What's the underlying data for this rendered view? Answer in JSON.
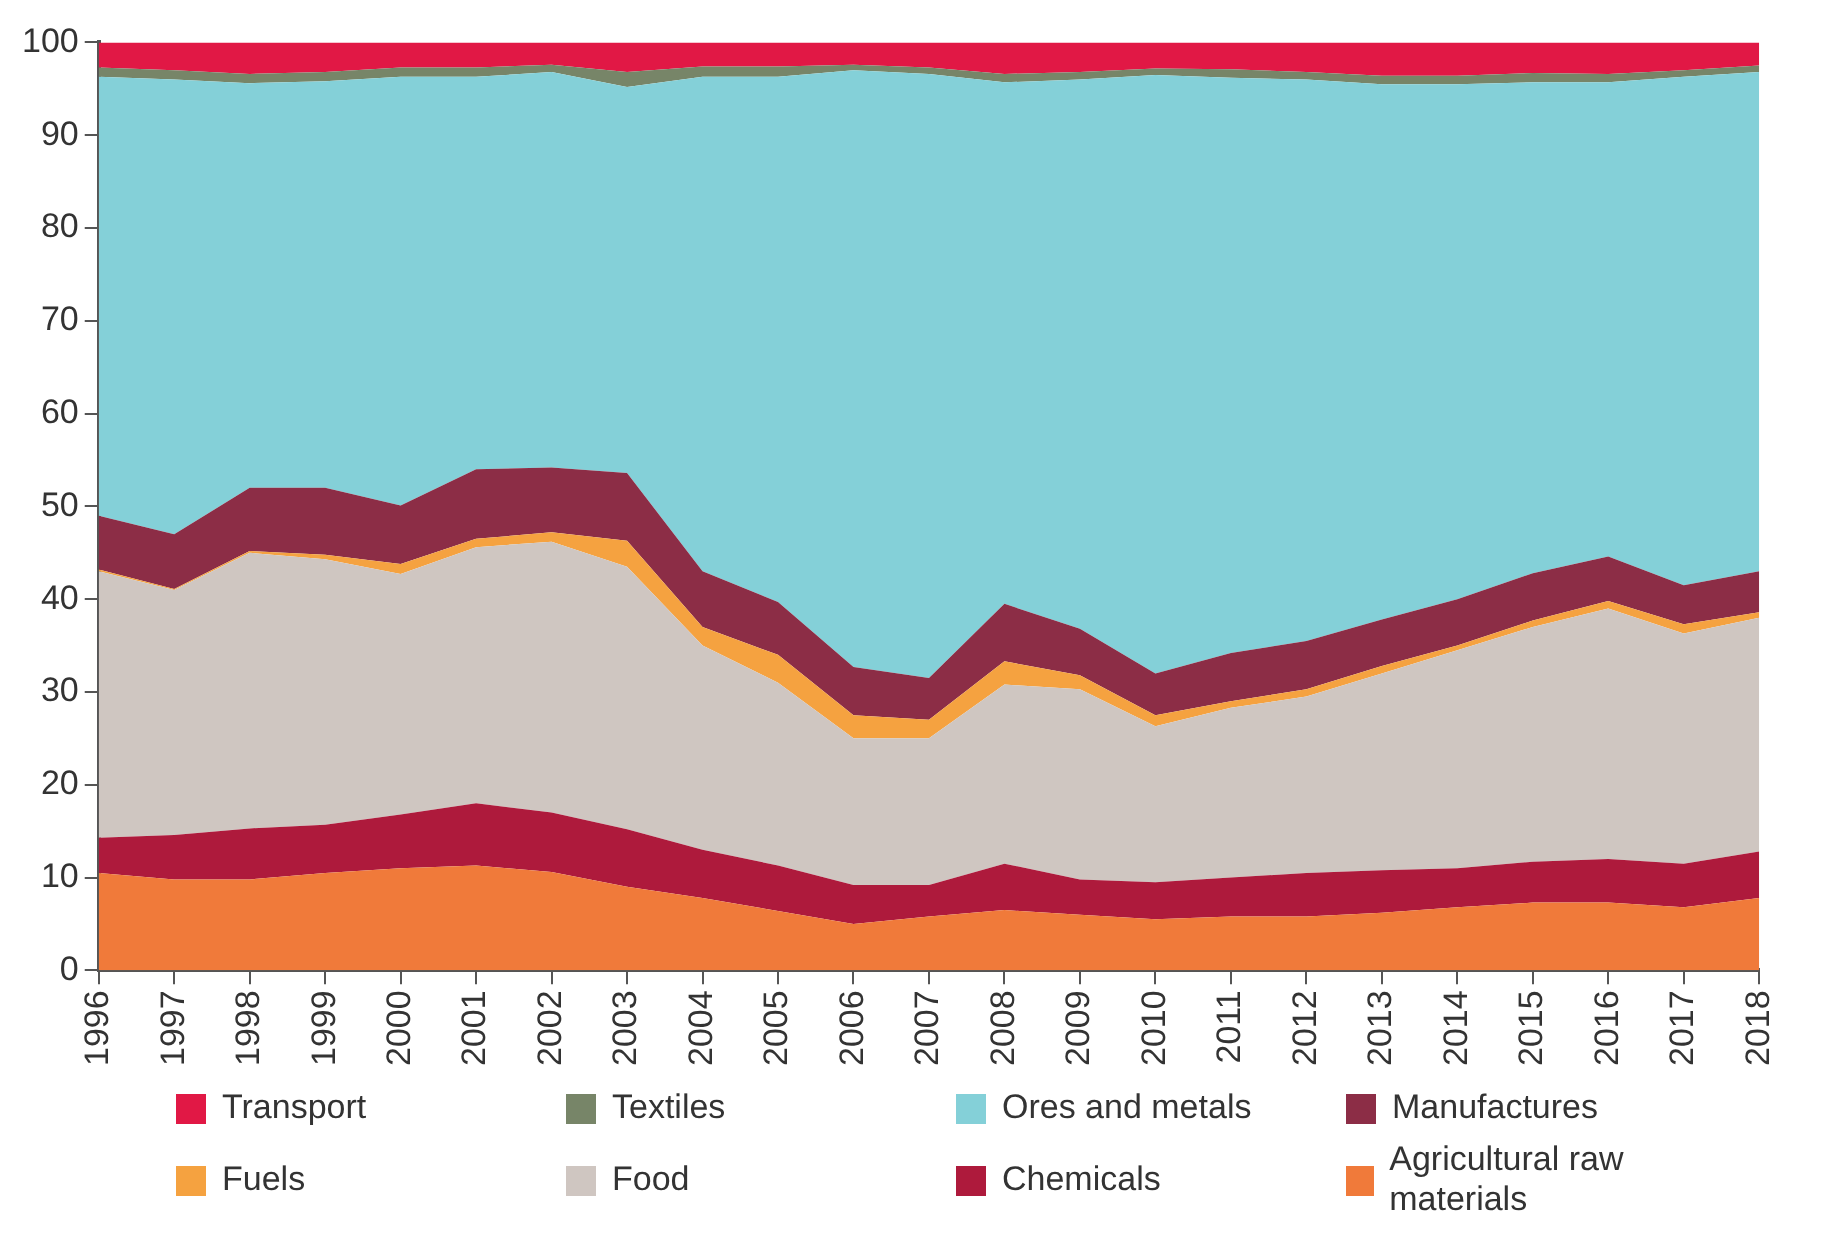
{
  "chart_data": {
    "type": "area",
    "stacked": true,
    "categories": [
      "1996",
      "1997",
      "1998",
      "1999",
      "2000",
      "2001",
      "2002",
      "2003",
      "2004",
      "2005",
      "2006",
      "2007",
      "2008",
      "2009",
      "2010",
      "2011",
      "2012",
      "2013",
      "2014",
      "2015",
      "2016",
      "2017",
      "2018"
    ],
    "series": [
      {
        "name": "Agricultural raw materials",
        "color": "#f07a3a",
        "values": [
          10.5,
          9.8,
          9.8,
          10.5,
          11,
          11.3,
          10.6,
          9,
          7.8,
          6.4,
          5,
          5.8,
          6.5,
          6,
          5.5,
          5.8,
          5.8,
          6.2,
          6.8,
          7.3,
          7.3,
          6.8,
          7.8
        ]
      },
      {
        "name": "Chemicals",
        "color": "#ae1a3c",
        "values": [
          3.8,
          4.8,
          5.5,
          5.2,
          5.8,
          6.7,
          6.4,
          6.2,
          5.2,
          4.9,
          4.2,
          3.4,
          5,
          3.8,
          4,
          4.2,
          4.7,
          4.6,
          4.2,
          4.4,
          4.7,
          4.7,
          5
        ]
      },
      {
        "name": "Food",
        "color": "#cfc6c1",
        "values": [
          28.7,
          26.4,
          29.7,
          28.6,
          25.9,
          27.6,
          29.2,
          28.3,
          22,
          19.7,
          15.8,
          15.8,
          19.3,
          20.5,
          16.8,
          18.3,
          19,
          21.2,
          23.5,
          25.3,
          27,
          24.8,
          25.2
        ]
      },
      {
        "name": "Fuels",
        "color": "#f5a240",
        "values": [
          0.2,
          0.1,
          0.2,
          0.5,
          1.1,
          0.9,
          1,
          2.8,
          2,
          3,
          2.5,
          2,
          2.5,
          1.5,
          1.2,
          0.7,
          0.8,
          0.8,
          0.5,
          0.7,
          0.8,
          1,
          0.6
        ]
      },
      {
        "name": "Manufactures",
        "color": "#8c2d46",
        "values": [
          5.8,
          5.9,
          6.8,
          7.2,
          6.3,
          7.5,
          7,
          7.3,
          6,
          5.7,
          5.2,
          4.5,
          6.2,
          5,
          4.5,
          5.2,
          5.2,
          5,
          5,
          5.1,
          4.8,
          4.2,
          4.4
        ]
      },
      {
        "name": "Ores and metals",
        "color": "#84d0d8",
        "values": [
          47.3,
          49,
          43.6,
          43.8,
          46.2,
          42.3,
          42.6,
          41.6,
          53.3,
          56.6,
          64.3,
          65.1,
          56.2,
          59.2,
          64.5,
          62,
          60.5,
          57.7,
          55.5,
          52.9,
          51.1,
          54.8,
          53.8
        ]
      },
      {
        "name": "Textiles",
        "color": "#778568",
        "values": [
          1,
          1,
          1,
          1,
          1,
          1,
          0.8,
          1.6,
          1.1,
          1.1,
          0.6,
          0.7,
          0.9,
          0.8,
          0.7,
          0.9,
          0.8,
          0.9,
          0.9,
          1,
          0.9,
          0.7,
          0.7
        ]
      },
      {
        "name": "Transport",
        "color": "#e11845",
        "values": [
          2.7,
          3,
          3.4,
          3.2,
          2.7,
          2.7,
          2.4,
          3.2,
          2.6,
          2.6,
          2.4,
          2.7,
          3.4,
          3.2,
          2.8,
          2.9,
          3.2,
          3.6,
          3.6,
          3.3,
          3.4,
          3,
          2.5
        ]
      }
    ],
    "ylim": [
      0,
      100
    ],
    "yticks": [
      0,
      10,
      20,
      30,
      40,
      50,
      60,
      70,
      80,
      90,
      100
    ],
    "grid": false,
    "legend": "bottom"
  }
}
